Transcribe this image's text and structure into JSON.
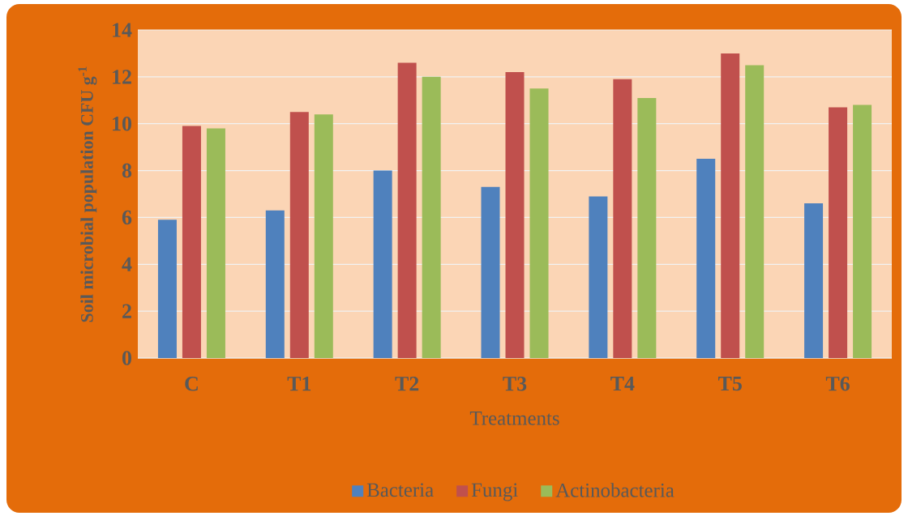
{
  "chart_data": {
    "type": "bar",
    "xlabel": "Treatments",
    "ylabel": "Soil microbial population CFU g$^{-1}$",
    "categories": [
      "C",
      "T1",
      "T2",
      "T3",
      "T4",
      "T5",
      "T6"
    ],
    "series": [
      {
        "name": "Bacteria",
        "color": "#4f81bd",
        "values": [
          5.9,
          6.3,
          8.0,
          7.3,
          6.9,
          8.5,
          6.6
        ]
      },
      {
        "name": "Fungi",
        "color": "#c0504d",
        "values": [
          9.9,
          10.5,
          12.6,
          12.2,
          11.9,
          13.0,
          10.7
        ]
      },
      {
        "name": "Actinobacteria",
        "color": "#9bbb59",
        "values": [
          9.8,
          10.4,
          12.0,
          11.5,
          11.1,
          12.5,
          10.8
        ]
      }
    ],
    "ylim": [
      0,
      14
    ],
    "yticks": [
      0,
      2,
      4,
      6,
      8,
      10,
      12,
      14
    ],
    "grid": "y",
    "legend": "bottom"
  }
}
